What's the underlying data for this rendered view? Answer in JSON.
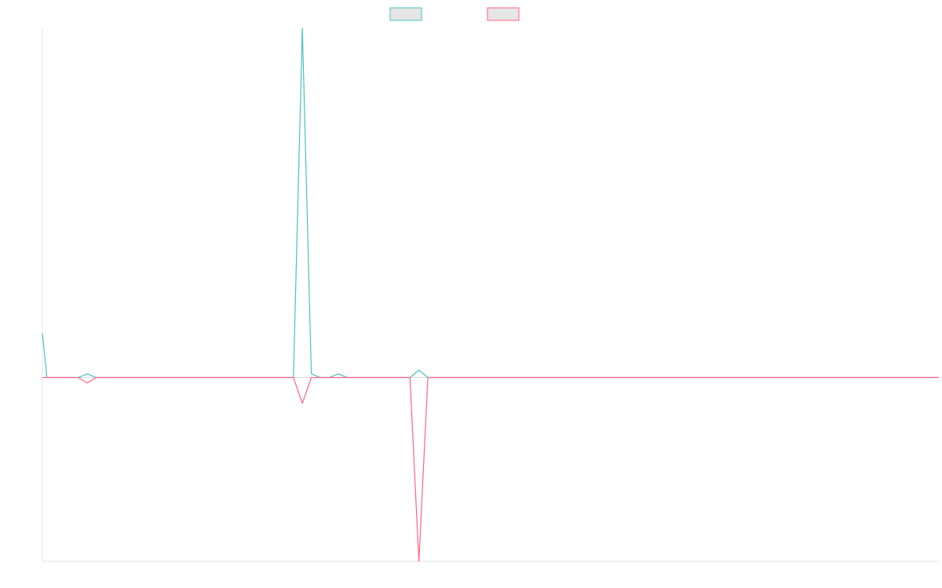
{
  "colors": {
    "series_a": "#4bc0c0",
    "series_b": "#ff6384",
    "swatch_fill": "#e6e6e6",
    "axis": "#e6e6e6"
  },
  "legend": [
    {
      "name": "",
      "color_key": "series_a"
    },
    {
      "name": "",
      "color_key": "series_b"
    }
  ],
  "chart_data": {
    "type": "line",
    "title": "",
    "xlabel": "",
    "ylabel": "",
    "grid": false,
    "legend_placement": "top-center",
    "x": [
      0,
      0.5,
      1,
      2,
      3,
      4,
      5,
      6,
      7,
      8,
      9,
      10,
      11,
      12,
      13,
      14,
      15,
      16,
      17,
      18,
      19,
      20,
      21,
      22,
      23,
      24,
      25,
      26,
      27,
      28,
      29,
      30,
      31,
      32,
      33,
      34,
      35,
      36,
      37,
      38,
      39,
      40,
      41,
      42,
      43,
      44,
      45,
      46,
      47,
      48,
      49,
      50,
      51,
      52,
      53,
      54,
      55,
      56,
      57,
      58,
      59,
      60,
      61,
      62,
      63,
      64,
      65,
      66,
      67,
      68,
      69,
      70,
      71,
      72,
      73,
      74,
      75,
      76,
      77,
      78,
      79,
      80,
      81,
      82,
      83,
      84,
      85,
      86,
      87,
      88,
      89,
      90,
      91,
      92,
      93,
      94,
      95,
      96,
      97,
      98,
      99,
      100
    ],
    "xlim": [
      0,
      100
    ],
    "ylim": [
      -1.0,
      1.9
    ],
    "series": [
      {
        "color_key": "series_a",
        "values": [
          0.24,
          0.0,
          0.0,
          0.0,
          0.0,
          0.0,
          0.02,
          0.0,
          0.0,
          0.0,
          0.0,
          0.0,
          0.0,
          0.0,
          0.0,
          0.0,
          0.0,
          0.0,
          0.0,
          0.0,
          0.0,
          0.0,
          0.0,
          0.0,
          0.0,
          0.0,
          0.0,
          0.0,
          0.0,
          0.0,
          1.9,
          0.02,
          0.0,
          0.0,
          0.02,
          0.0,
          0.0,
          0.0,
          0.0,
          0.0,
          0.0,
          0.0,
          0.0,
          0.04,
          0.0,
          0.0,
          0.0,
          0.0,
          0.0,
          0.0,
          0.0,
          0.0,
          0.0,
          0.0,
          0.0,
          0.0,
          0.0,
          0.0,
          0.0,
          0.0,
          0.0,
          0.0,
          0.0,
          0.0,
          0.0,
          0.0,
          0.0,
          0.0,
          0.0,
          0.0,
          0.0,
          0.0,
          0.0,
          0.0,
          0.0,
          0.0,
          0.0,
          0.0,
          0.0,
          0.0,
          0.0,
          0.0,
          0.0,
          0.0,
          0.0,
          0.0,
          0.0,
          0.0,
          0.0,
          0.0,
          0.0,
          0.0,
          0.0,
          0.0,
          0.0,
          0.0,
          0.0,
          0.0,
          0.0,
          0.0,
          0.0,
          0.0
        ]
      },
      {
        "color_key": "series_b",
        "values": [
          0.0,
          0.0,
          0.0,
          0.0,
          0.0,
          0.0,
          -0.03,
          0.0,
          0.0,
          0.0,
          0.0,
          0.0,
          0.0,
          0.0,
          0.0,
          0.0,
          0.0,
          0.0,
          0.0,
          0.0,
          0.0,
          0.0,
          0.0,
          0.0,
          0.0,
          0.0,
          0.0,
          0.0,
          0.0,
          0.0,
          -0.14,
          0.0,
          0.0,
          0.0,
          0.0,
          0.0,
          0.0,
          0.0,
          0.0,
          0.0,
          0.0,
          0.0,
          0.0,
          -1.0,
          0.0,
          0.0,
          0.0,
          0.0,
          0.0,
          0.0,
          0.0,
          0.0,
          0.0,
          0.0,
          0.0,
          0.0,
          0.0,
          0.0,
          0.0,
          0.0,
          0.0,
          0.0,
          0.0,
          0.0,
          0.0,
          0.0,
          0.0,
          0.0,
          0.0,
          0.0,
          0.0,
          0.0,
          0.0,
          0.0,
          0.0,
          0.0,
          0.0,
          0.0,
          0.0,
          0.0,
          0.0,
          0.0,
          0.0,
          0.0,
          0.0,
          0.0,
          0.0,
          0.0,
          0.0,
          0.0,
          0.0,
          0.0,
          0.0,
          0.0,
          0.0,
          0.0,
          0.0,
          0.0,
          0.0,
          0.0,
          0.0,
          0.0
        ]
      }
    ]
  }
}
